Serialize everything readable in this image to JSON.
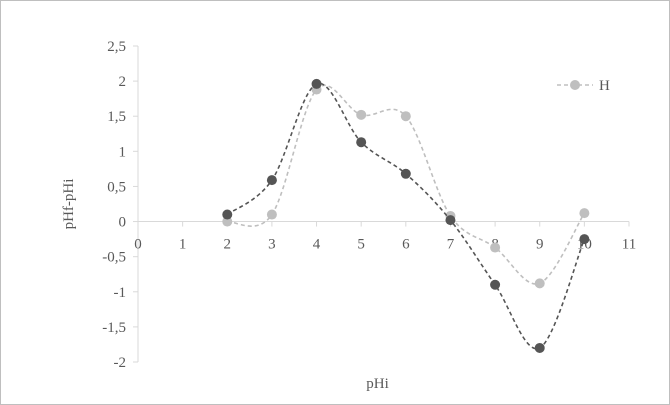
{
  "chart_data": {
    "type": "scatter",
    "xlabel": "pHi",
    "ylabel": "pHf-pHi",
    "xlim": [
      0,
      11
    ],
    "ylim": [
      -2,
      2.5
    ],
    "x_ticks": [
      0,
      1,
      2,
      3,
      4,
      5,
      6,
      7,
      8,
      9,
      10,
      11
    ],
    "y_ticks": [
      2.5,
      2,
      1.5,
      1,
      0.5,
      0,
      -0.5,
      -1,
      -1.5,
      -2
    ],
    "x_tick_labels": [
      "0",
      "1",
      "2",
      "3",
      "4",
      "5",
      "6",
      "7",
      "8",
      "9",
      "10",
      "11"
    ],
    "y_tick_labels": [
      "2,5",
      "2",
      "1,5",
      "1",
      "0,5",
      "0",
      "-0,5",
      "-1",
      "-1,5",
      "-2"
    ],
    "smooth_lines": true,
    "line_style": "dashed",
    "grid": false,
    "legend_position": "top-right",
    "series": [
      {
        "name": "H",
        "color": "#bfbfbf",
        "points": [
          {
            "x": 2,
            "y": 0.0
          },
          {
            "x": 3,
            "y": 0.1
          },
          {
            "x": 4,
            "y": 1.88
          },
          {
            "x": 5,
            "y": 1.52
          },
          {
            "x": 6,
            "y": 1.5
          },
          {
            "x": 7,
            "y": 0.08
          },
          {
            "x": 8,
            "y": -0.37
          },
          {
            "x": 9,
            "y": -0.88
          },
          {
            "x": 10,
            "y": 0.12
          }
        ]
      },
      {
        "color": "#555555",
        "points": [
          {
            "x": 2,
            "y": 0.1
          },
          {
            "x": 3,
            "y": 0.59
          },
          {
            "x": 4,
            "y": 1.96
          },
          {
            "x": 5,
            "y": 1.13
          },
          {
            "x": 6,
            "y": 0.68
          },
          {
            "x": 7,
            "y": 0.02
          },
          {
            "x": 8,
            "y": -0.9
          },
          {
            "x": 9,
            "y": -1.8
          },
          {
            "x": 10,
            "y": -0.25
          }
        ]
      }
    ]
  }
}
